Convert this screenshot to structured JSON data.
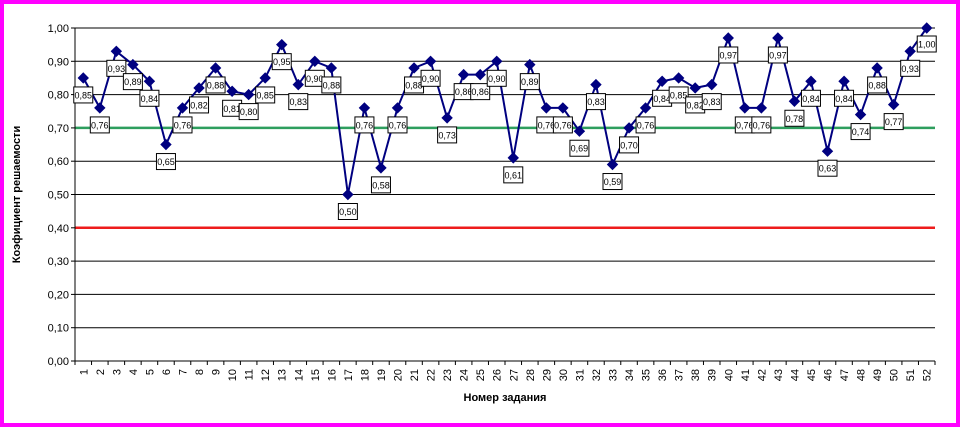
{
  "chart_data": {
    "type": "line",
    "title": "",
    "xlabel": "Номер задания",
    "ylabel": "Коэфициент решаемости",
    "ylim": [
      0,
      1
    ],
    "y_ticks": [
      "0,00",
      "0,10",
      "0,20",
      "0,30",
      "0,40",
      "0,50",
      "0,60",
      "0,70",
      "0,80",
      "0,90",
      "1,00"
    ],
    "categories": [
      "1",
      "2",
      "3",
      "4",
      "5",
      "6",
      "7",
      "8",
      "9",
      "10",
      "11",
      "12",
      "13",
      "14",
      "15",
      "16",
      "17",
      "18",
      "19",
      "20",
      "21",
      "22",
      "23",
      "24",
      "25",
      "26",
      "27",
      "28",
      "29",
      "30",
      "31",
      "32",
      "33",
      "34",
      "35",
      "36",
      "37",
      "38",
      "39",
      "40",
      "41",
      "42",
      "43",
      "44",
      "45",
      "46",
      "47",
      "48",
      "49",
      "50",
      "51",
      "52"
    ],
    "values": [
      0.85,
      0.76,
      0.93,
      0.89,
      0.84,
      0.65,
      0.76,
      0.82,
      0.88,
      0.81,
      0.8,
      0.85,
      0.95,
      0.83,
      0.9,
      0.88,
      0.5,
      0.76,
      0.58,
      0.76,
      0.88,
      0.9,
      0.73,
      0.86,
      0.86,
      0.9,
      0.61,
      0.89,
      0.76,
      0.76,
      0.69,
      0.83,
      0.59,
      0.7,
      0.76,
      0.84,
      0.85,
      0.82,
      0.83,
      0.97,
      0.76,
      0.76,
      0.97,
      0.78,
      0.84,
      0.63,
      0.84,
      0.74,
      0.88,
      0.77,
      0.93,
      1.0
    ],
    "labels": [
      "0,85",
      "0,76",
      "0,93",
      "0,89",
      "0,84",
      "0,65",
      "0,76",
      "0,82",
      "0,88",
      "0,81",
      "0,80",
      "0,85",
      "0,95",
      "0,83",
      "0,90",
      "0,88",
      "0,50",
      "0,76",
      "0,58",
      "0,76",
      "0,88",
      "0,90",
      "0,73",
      "0,86",
      "0,86",
      "0,90",
      "0,61",
      "0,89",
      "0,76",
      "0,76",
      "0,69",
      "0,83",
      "0,59",
      "0,70",
      "0,76",
      "0,84",
      "0,85",
      "0,82",
      "0,83",
      "0,97",
      "0,76",
      "0,76",
      "0,97",
      "0,78",
      "0,84",
      "0,63",
      "0,84",
      "0,74",
      "0,88",
      "0,77",
      "0,93",
      "1,00"
    ],
    "reference_lines": [
      {
        "value": 0.7,
        "color": "#2e9e5e"
      },
      {
        "value": 0.4,
        "color": "#ee1c1c"
      }
    ],
    "grid": true,
    "legend": "none",
    "colors": {
      "series": "#000080",
      "grid": "#000000",
      "frame_border": "#ff00ff"
    }
  }
}
